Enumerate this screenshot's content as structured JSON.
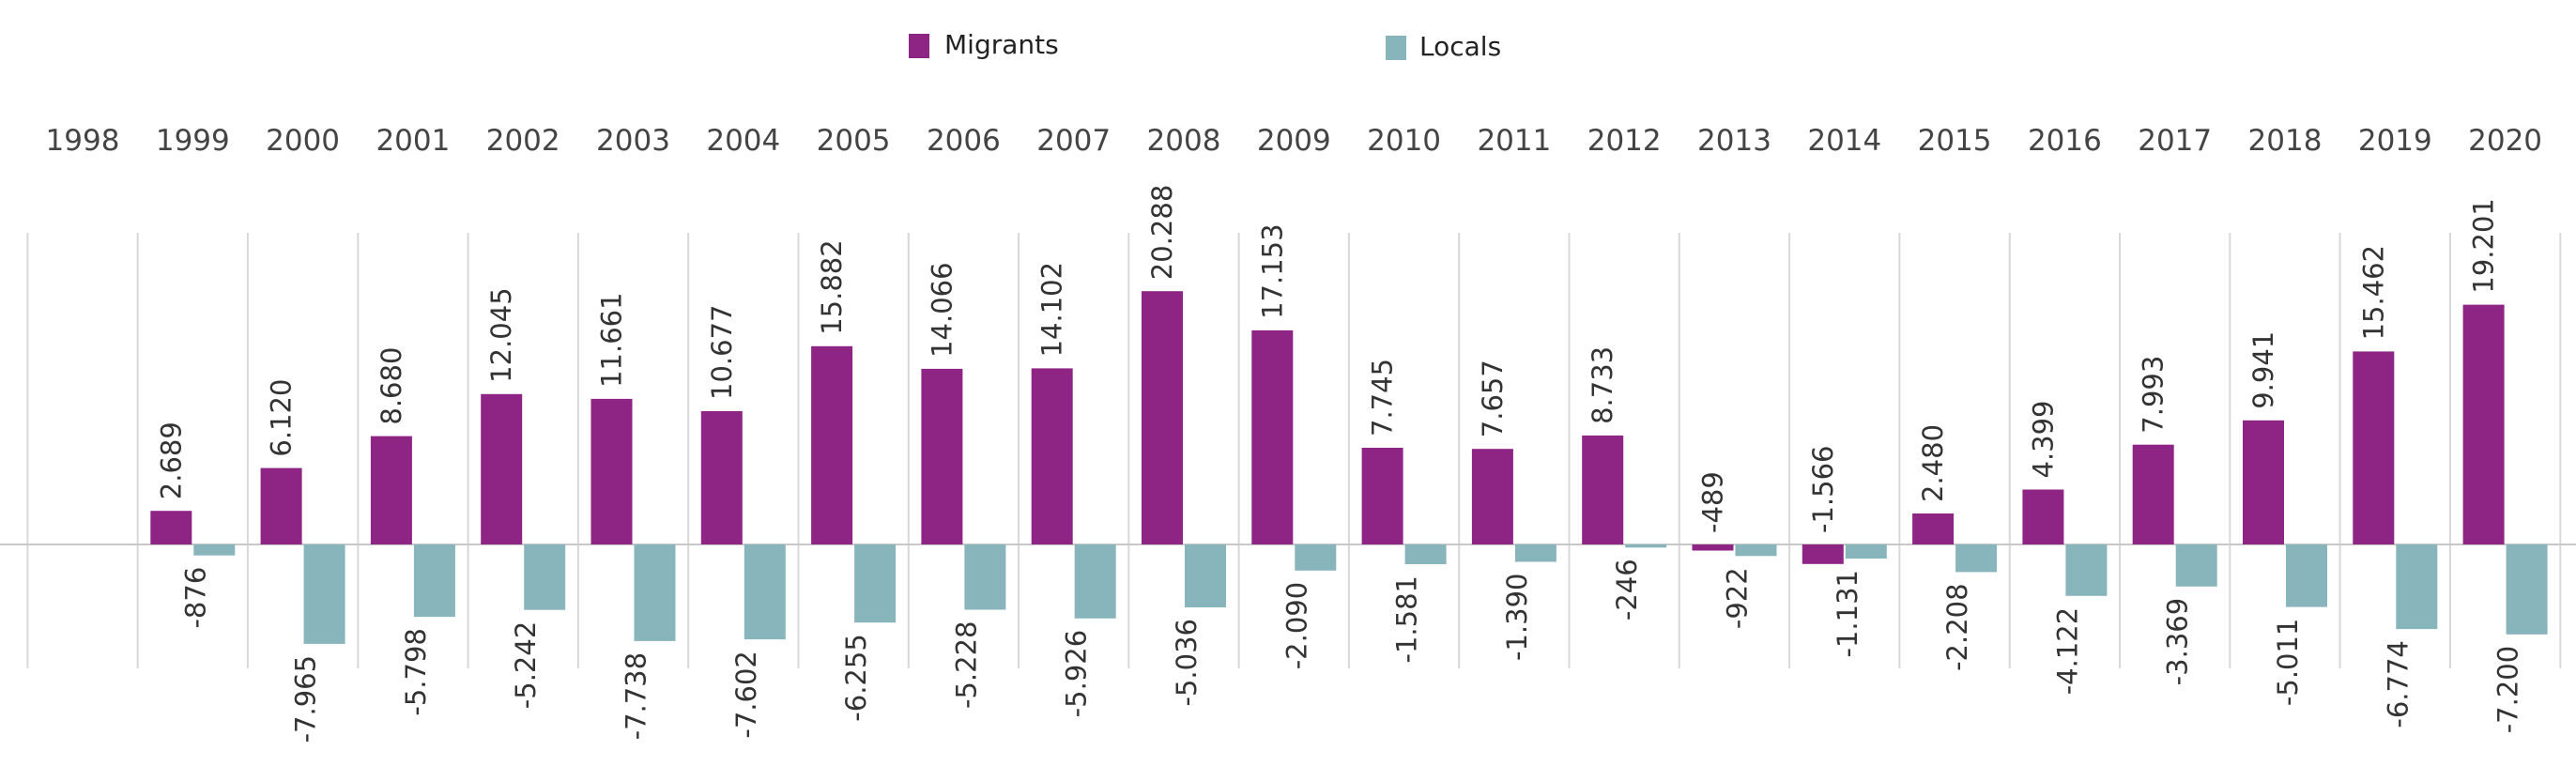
{
  "chart_data": {
    "type": "bar",
    "title": "",
    "xlabel": "",
    "ylabel": "",
    "legend_position": "top-center",
    "categories": [
      "1998",
      "1999",
      "2000",
      "2001",
      "2002",
      "2003",
      "2004",
      "2005",
      "2006",
      "2007",
      "2008",
      "2009",
      "2010",
      "2011",
      "2012",
      "2013",
      "2014",
      "2015",
      "2016",
      "2017",
      "2018",
      "2019",
      "2020"
    ],
    "series": [
      {
        "name": "Migrants",
        "color": "#8e2484",
        "values": [
          null,
          2689,
          6120,
          8680,
          12045,
          11661,
          10677,
          15882,
          14066,
          14102,
          20288,
          17153,
          7745,
          7657,
          8733,
          -489,
          -1566,
          2480,
          4399,
          7993,
          9941,
          15462,
          19201
        ],
        "labels": [
          "",
          "2.689",
          "6.120",
          "8.680",
          "12.045",
          "11.661",
          "10.677",
          "15.882",
          "14.066",
          "14.102",
          "20.288",
          "17.153",
          "7.745",
          "7.657",
          "8.733",
          "-489",
          "-1.566",
          "2.480",
          "4.399",
          "7.993",
          "9.941",
          "15.462",
          "19.201"
        ]
      },
      {
        "name": "Locals",
        "color": "#88b4bc",
        "values": [
          null,
          -876,
          -7965,
          -5798,
          -5242,
          -7738,
          -7602,
          -6255,
          -5228,
          -5926,
          -5036,
          -2090,
          -1581,
          -1390,
          -246,
          -922,
          -1131,
          -2208,
          -4122,
          -3369,
          -5011,
          -6774,
          -7200
        ],
        "labels": [
          "",
          "-876",
          "-7.965",
          "-5.798",
          "-5.242",
          "-7.738",
          "-7.602",
          "-6.255",
          "-5.228",
          "-5.926",
          "-5.036",
          "-2.090",
          "-1.581",
          "-1.390",
          "-246",
          "-922",
          "-1.131",
          "-2.208",
          "-4.122",
          "-3.369",
          "-5.011",
          "-6.774",
          "-7.200"
        ]
      }
    ],
    "ylim": [
      -10000,
      25000
    ],
    "grid": "vertical"
  }
}
